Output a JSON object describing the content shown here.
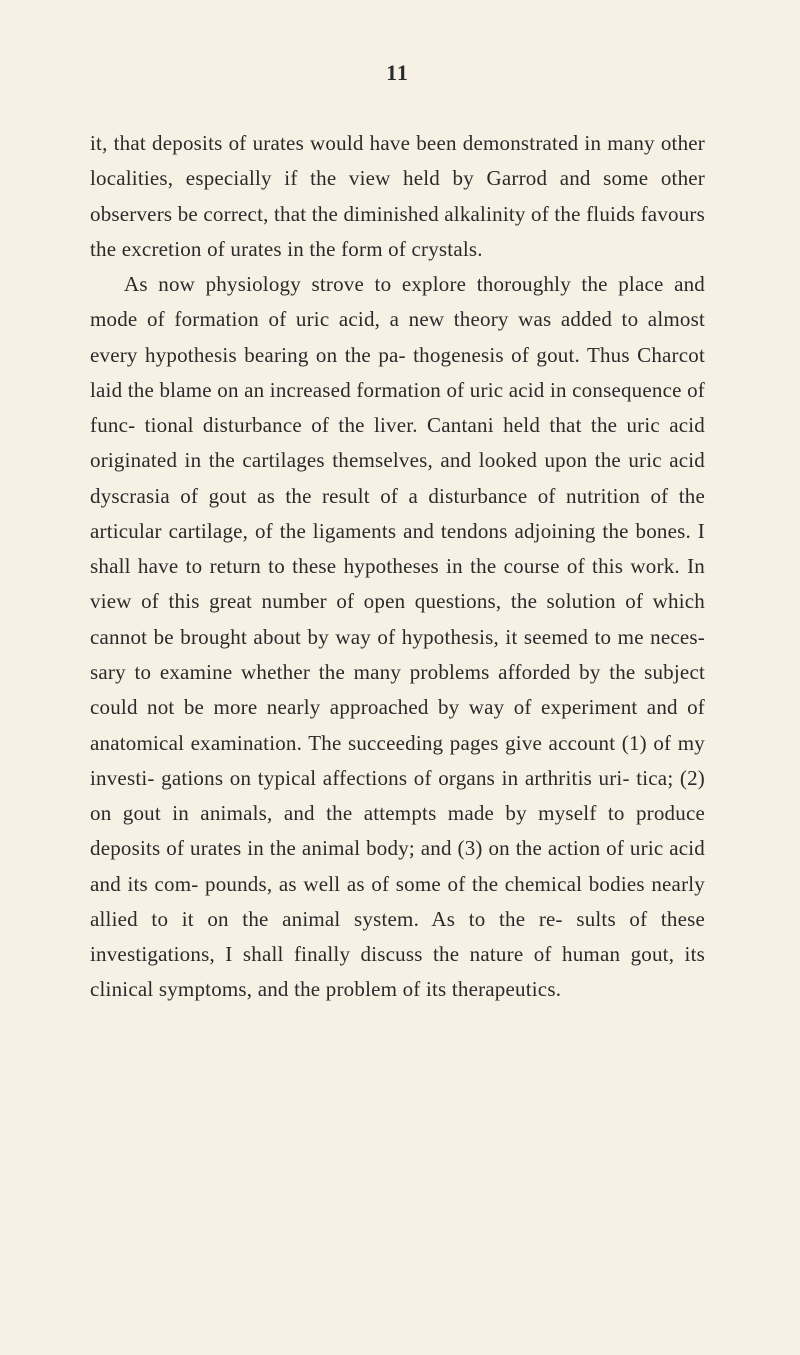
{
  "page": {
    "number": "11",
    "background_color": "#f6f1e4",
    "text_color": "#2a2a2a",
    "font_size": 21,
    "line_height": 1.68
  },
  "paragraphs": {
    "p1": "it, that deposits of urates would have been demonstrated in many other localities, especially if the view held by Garrod and some other observers be correct, that the diminished alkalinity of the fluids favours the excretion of urates in the form of crystals.",
    "p2": "As now physiology strove to explore thoroughly the place and mode of formation of uric acid, a new theory was added to almost every hypothesis bearing on the pa- thogenesis of gout. Thus Charcot laid the blame on an increased formation of uric acid in consequence of func- tional disturbance of the liver. Cantani held that the uric acid originated in the cartilages themselves, and looked upon the uric acid dyscrasia of gout as the result of a disturbance of nutrition of the articular cartilage, of the ligaments and tendons adjoining the bones. I shall have to return to these hypotheses in the course of this work. In view of this great number of open questions, the solution of which cannot be brought about by way of hypothesis, it seemed to me neces- sary to examine whether the many problems afforded by the subject could not be more nearly approached by way of experiment and of anatomical examination. The succeeding pages give account (1) of my investi- gations on typical affections of organs in arthritis uri- tica; (2) on gout in animals, and the attempts made by myself to produce deposits of urates in the animal body; and (3) on the action of uric acid and its com- pounds, as well as of some of the chemical bodies nearly allied to it on the animal system. As to the re- sults of these investigations, I shall finally discuss the nature of human gout, its clinical symptoms, and the problem of its therapeutics."
  }
}
